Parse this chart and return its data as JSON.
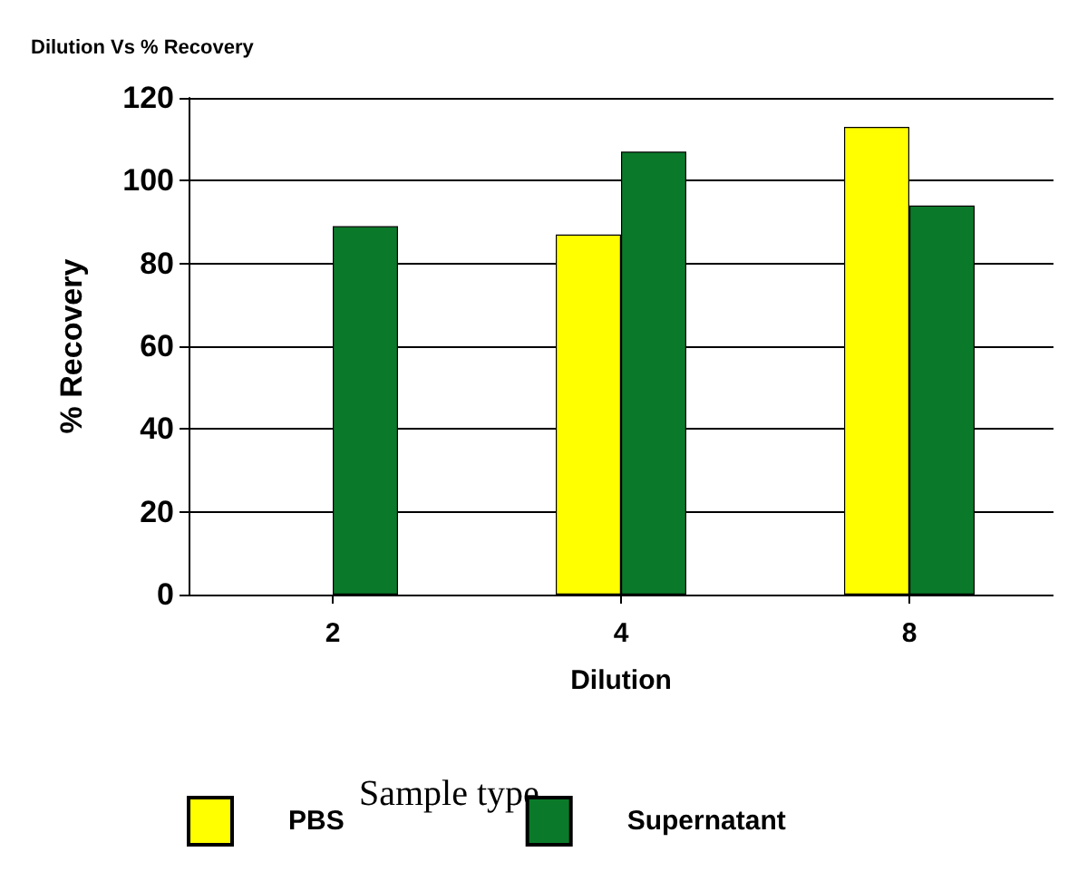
{
  "chart_data": {
    "type": "bar",
    "title": "Dilution Vs % Recovery",
    "xlabel": "Dilution",
    "ylabel": "% Recovery",
    "legend_title": "Sample type",
    "categories": [
      "2",
      "4",
      "8"
    ],
    "series": [
      {
        "name": "PBS",
        "color": "#ffff00",
        "values": [
          null,
          87,
          113
        ]
      },
      {
        "name": "Supernatant",
        "color": "#0a7a2a",
        "values": [
          89,
          107,
          94
        ]
      }
    ],
    "ylim": [
      0,
      120
    ],
    "yticks": [
      0,
      20,
      40,
      60,
      80,
      100,
      120
    ],
    "grid": "y",
    "legend": "bottom"
  }
}
